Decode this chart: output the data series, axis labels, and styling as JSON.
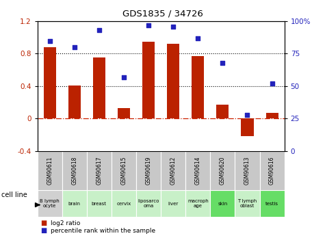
{
  "title": "GDS1835 / 34726",
  "gsm_labels": [
    "GSM90611",
    "GSM90618",
    "GSM90617",
    "GSM90615",
    "GSM90619",
    "GSM90612",
    "GSM90614",
    "GSM90620",
    "GSM90613",
    "GSM90616"
  ],
  "cell_labels": [
    "B lymph\nocyte",
    "brain",
    "breast",
    "cervix",
    "liposarco\noma",
    "liver",
    "macroph\nage",
    "skin",
    "T lymph\noblast",
    "testis"
  ],
  "cell_colors": [
    "#d0d0d0",
    "#c8f0c8",
    "#c8f0c8",
    "#c8f0c8",
    "#c8f0c8",
    "#c8f0c8",
    "#c8f0c8",
    "#66dd66",
    "#c8f0c8",
    "#66dd66"
  ],
  "log2_ratio": [
    0.88,
    0.41,
    0.75,
    0.13,
    0.95,
    0.92,
    0.77,
    0.17,
    -0.22,
    0.07
  ],
  "percentile_rank": [
    85,
    80,
    93,
    57,
    97,
    96,
    87,
    68,
    28,
    52
  ],
  "bar_color": "#bb2200",
  "dot_color": "#2222bb",
  "ylim_left": [
    -0.4,
    1.2
  ],
  "ylim_right": [
    0,
    100
  ],
  "yticks_left": [
    -0.4,
    0.0,
    0.4,
    0.8,
    1.2
  ],
  "ytick_labels_left": [
    "-0.4",
    "0",
    "0.4",
    "0.8",
    "1.2"
  ],
  "yticks_right": [
    0,
    25,
    50,
    75,
    100
  ],
  "ytick_labels_right": [
    "0",
    "25",
    "50",
    "75",
    "100%"
  ],
  "legend_red": "log2 ratio",
  "legend_blue": "percentile rank within the sample",
  "cell_line_label": "cell line",
  "gsm_box_color": "#c8c8c8",
  "hline0_color": "#cc2200",
  "hline_dot_color": "#000000"
}
